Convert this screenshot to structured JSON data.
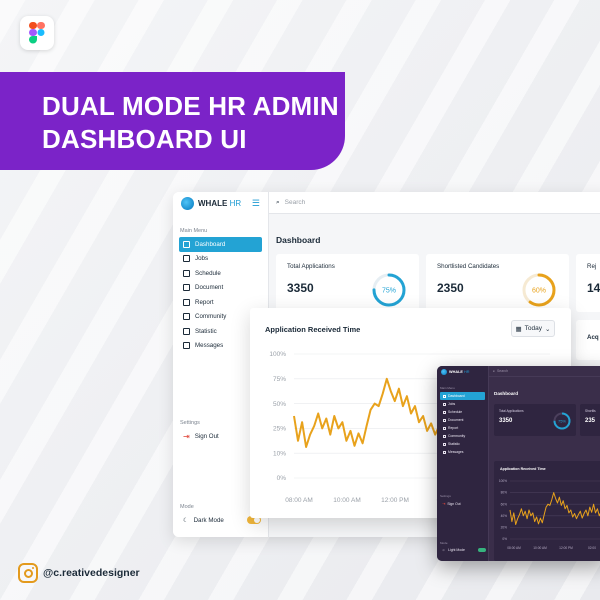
{
  "banner": {
    "title": "DUAL MODE HR ADMIN DASHBOARD UI"
  },
  "credit": {
    "handle": "@c.reativedesigner"
  },
  "light": {
    "brand": {
      "name": "WHALE",
      "accent": "HR"
    },
    "sidebar": {
      "section": "Main Menu",
      "items": [
        {
          "label": "Dashboard",
          "icon": "grid-icon",
          "active": true
        },
        {
          "label": "Jobs",
          "icon": "briefcase-icon"
        },
        {
          "label": "Schedule",
          "icon": "list-icon"
        },
        {
          "label": "Document",
          "icon": "document-icon"
        },
        {
          "label": "Report",
          "icon": "report-icon"
        },
        {
          "label": "Community",
          "icon": "users-icon"
        },
        {
          "label": "Statistic",
          "icon": "chart-icon"
        },
        {
          "label": "Messages",
          "icon": "message-icon"
        }
      ],
      "settings_label": "Settings",
      "signout_label": "Sign Out",
      "mode_label": "Mode",
      "mode_value": "Dark Mode"
    },
    "search_placeholder": "Search",
    "page_title": "Dashboard",
    "cards": [
      {
        "label": "Total Applications",
        "value": "3350",
        "percent": 75,
        "percent_label": "75%",
        "color": "#23a3d4"
      },
      {
        "label": "Shortlisted Candidates",
        "value": "2350",
        "percent": 60,
        "percent_label": "60%",
        "color": "#e8a21c"
      },
      {
        "label": "Rej",
        "value": "14"
      }
    ],
    "side_panel_label": "Acq",
    "chart_title": "Application Received Time",
    "chart_filter": "Today"
  },
  "dark": {
    "brand": {
      "name": "WHALE",
      "accent": "HR"
    },
    "sidebar": {
      "section": "Main Menu",
      "items": [
        "Dashboard",
        "Jobs",
        "Schedule",
        "Document",
        "Report",
        "Community",
        "Statistic",
        "Messages"
      ],
      "settings_label": "Settings",
      "signout_label": "Sign Out",
      "mode_label": "Mode",
      "mode_value": "Light Mode"
    },
    "search_placeholder": "Search",
    "page_title": "Dashboard",
    "card_label": "Total Applications",
    "card_value": "3350",
    "card_percent_label": "75%",
    "card2_label": "Shortlis",
    "card2_value": "235",
    "chart_title": "Application Received Time",
    "chart_yticks": [
      "100%",
      "80%",
      "60%",
      "40%",
      "20%",
      "0%"
    ],
    "chart_xticks": [
      "08:00 AM",
      "10:00 AM",
      "12:00 PM",
      "02:00"
    ]
  },
  "chart_data": {
    "type": "line",
    "title": "Application Received Time",
    "xlabel": "",
    "ylabel": "",
    "x_ticks": [
      "08:00 AM",
      "10:00 AM",
      "12:00 PM",
      "02:0"
    ],
    "y_ticks": [
      "100%",
      "75%",
      "50%",
      "25%",
      "10%",
      "0%"
    ],
    "ylim": [
      0,
      100
    ],
    "series": [
      {
        "color": "#e8a21c",
        "x_hours": [
          8.0,
          8.1,
          8.2,
          8.3,
          8.4,
          8.5,
          8.6,
          8.7,
          8.8,
          8.9,
          9.0,
          9.1,
          9.2,
          9.3,
          9.4,
          9.5,
          9.6,
          9.7,
          9.8,
          9.9,
          10.0,
          10.1,
          10.2,
          10.3,
          10.4,
          10.5,
          10.6,
          10.7,
          10.8,
          10.9,
          11.0,
          11.1,
          11.2,
          11.3,
          11.4,
          11.5,
          11.6,
          11.7,
          11.8,
          11.9,
          12.0,
          12.1,
          12.2,
          12.3,
          12.4,
          12.5,
          12.6,
          12.7,
          12.8,
          12.9,
          13.0,
          13.1,
          13.2,
          13.3,
          13.4,
          13.5,
          13.6,
          13.7,
          13.8,
          13.9,
          14.0
        ],
        "values": [
          50,
          30,
          45,
          25,
          35,
          42,
          52,
          40,
          48,
          35,
          50,
          40,
          45,
          30,
          38,
          26,
          36,
          28,
          42,
          55,
          60,
          58,
          68,
          80,
          70,
          62,
          72,
          58,
          66,
          52,
          58,
          45,
          50,
          38,
          44,
          35,
          42,
          48,
          36,
          44,
          50,
          40,
          55,
          46,
          60,
          45,
          52,
          40,
          48,
          55,
          44,
          50,
          58,
          46,
          52,
          48,
          50,
          56,
          46,
          52,
          50
        ]
      }
    ]
  }
}
